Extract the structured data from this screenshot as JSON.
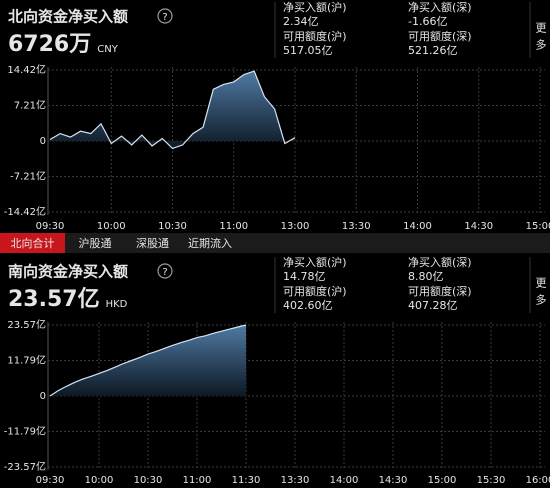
{
  "tabs": [
    "北向合计",
    "沪股通",
    "深股通",
    "近期流入"
  ],
  "chart_data": [
    {
      "type": "area",
      "title": "北向资金净买入额",
      "value_text": "6726万",
      "currency": "CNY",
      "more": "更多",
      "stats": [
        {
          "label": "净买入额(沪)",
          "value": "2.34亿",
          "color": "#f0262a"
        },
        {
          "label": "净买入额(深)",
          "value": "-1.66亿",
          "color": "#2bd12b"
        },
        {
          "label": "可用额度(沪)",
          "value": "517.05亿",
          "color": "#e6e6e6"
        },
        {
          "label": "可用额度(深)",
          "value": "521.26亿",
          "color": "#e6e6e6"
        }
      ],
      "x": [
        "09:30",
        "09:35",
        "09:40",
        "09:45",
        "09:50",
        "09:55",
        "10:00",
        "10:05",
        "10:10",
        "10:15",
        "10:20",
        "10:25",
        "10:30",
        "10:35",
        "10:40",
        "10:45",
        "10:50",
        "10:55",
        "11:00",
        "11:05",
        "11:10",
        "11:15",
        "11:20",
        "11:25",
        "11:30"
      ],
      "series": [
        {
          "color": "#d6e4f2",
          "values": [
            0.3,
            1.5,
            0.8,
            2.0,
            1.5,
            3.5,
            -0.5,
            1.0,
            -0.8,
            1.2,
            -1.0,
            0.5,
            -1.5,
            -0.8,
            1.5,
            2.8,
            10.5,
            11.5,
            12.0,
            13.5,
            14.2,
            9.0,
            6.5,
            -0.5,
            0.67
          ]
        }
      ],
      "ylim": [
        -14.42,
        14.42
      ],
      "yticks": [
        {
          "value": -14.42,
          "label": "-14.42亿"
        },
        {
          "value": -7.21,
          "label": "-7.21亿"
        },
        0,
        {
          "value": 7.21,
          "label": "7.21亿"
        },
        {
          "value": 14.42,
          "label": "14.42亿"
        }
      ],
      "xticks": [
        "09:30",
        "10:00",
        "10:30",
        "11:00",
        "13:00",
        "13:30",
        "14:00",
        "14:30",
        "15:00"
      ],
      "grid": true
    },
    {
      "type": "area",
      "title": "南向资金净买入额",
      "value_text": "23.57亿",
      "currency": "HKD",
      "more": "更多",
      "stats": [
        {
          "label": "净买入额(沪)",
          "value": "14.78亿",
          "color": "#f0262a"
        },
        {
          "label": "净买入额(深)",
          "value": "8.80亿",
          "color": "#f0262a"
        },
        {
          "label": "可用额度(沪)",
          "value": "402.60亿",
          "color": "#e6e6e6"
        },
        {
          "label": "可用额度(深)",
          "value": "407.28亿",
          "color": "#e6e6e6"
        }
      ],
      "x": [
        "09:30",
        "09:35",
        "09:40",
        "09:45",
        "09:50",
        "09:55",
        "10:00",
        "10:05",
        "10:10",
        "10:15",
        "10:20",
        "10:25",
        "10:30",
        "10:35",
        "10:40",
        "10:45",
        "10:50",
        "10:55",
        "11:00",
        "11:05",
        "11:10",
        "11:15",
        "11:20",
        "11:25",
        "11:30"
      ],
      "series": [
        {
          "color": "#d6e4f2",
          "values": [
            0,
            1.8,
            3.2,
            4.5,
            5.6,
            6.5,
            7.5,
            8.5,
            9.6,
            10.8,
            11.8,
            12.8,
            13.9,
            14.8,
            15.8,
            16.8,
            17.7,
            18.5,
            19.4,
            20.0,
            20.8,
            21.5,
            22.2,
            22.9,
            23.57
          ]
        }
      ],
      "ylim": [
        -23.57,
        23.57
      ],
      "yticks": [
        {
          "value": -23.57,
          "label": "-23.57亿"
        },
        {
          "value": -11.79,
          "label": "-11.79亿"
        },
        0,
        {
          "value": 11.79,
          "label": "11.79亿"
        },
        {
          "value": 23.57,
          "label": "23.57亿"
        }
      ],
      "xticks": [
        "09:30",
        "10:00",
        "10:30",
        "11:00",
        "11:30",
        "13:30",
        "14:00",
        "14:30",
        "15:00",
        "15:30",
        "16:00"
      ],
      "grid": true
    }
  ]
}
